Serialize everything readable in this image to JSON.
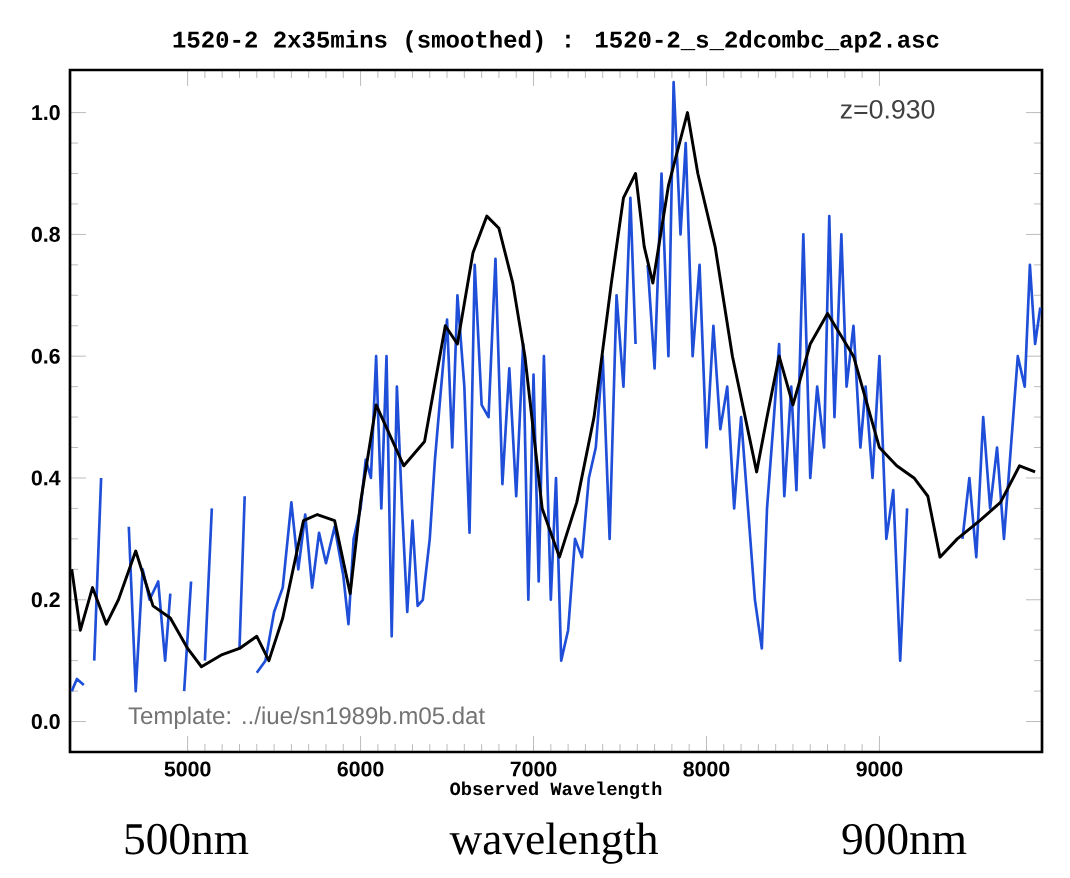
{
  "chart_data": {
    "type": "line",
    "title": "1520-2 2x35mins (smoothed) : 1520-2_s_2dcombc_ap2.asc",
    "xlabel": "Observed Wavelength",
    "annotations": [
      "z=0.930",
      "Template: ../iue/sn1989b.m05.dat",
      "500nm",
      "wavelength",
      "900nm"
    ],
    "xlim": [
      4320,
      9940
    ],
    "ylim": [
      -0.05,
      1.07
    ],
    "xticks": [
      5000,
      6000,
      7000,
      8000,
      9000
    ],
    "yticks": [
      {
        "value": 0,
        "label": "0.0"
      },
      {
        "value": 0.2,
        "label": "0.2"
      },
      {
        "value": 0.4,
        "label": "0.4"
      },
      {
        "value": 0.6,
        "label": "0.6"
      },
      {
        "value": 0.8,
        "label": "0.8"
      },
      {
        "value": 1.0,
        "label": "1.0"
      }
    ],
    "line_style": "solid",
    "marker": "none",
    "series": [
      {
        "color": "#1f4fd8",
        "x": [
          4330,
          4360,
          4400,
          4430,
          4460,
          4500,
          4530,
          4580,
          4620,
          4660,
          4700,
          4740,
          4780,
          4830,
          4870,
          4900,
          4940,
          4980,
          5020,
          5050,
          5100,
          5140,
          5170,
          5220,
          5260,
          5300,
          5330,
          5370,
          5400,
          5450,
          5500,
          5550,
          5600,
          5640,
          5680,
          5720,
          5760,
          5800,
          5850,
          5900,
          5930,
          5960,
          6000,
          6030,
          6060,
          6090,
          6120,
          6150,
          6180,
          6210,
          6240,
          6270,
          6300,
          6330,
          6360,
          6400,
          6430,
          6460,
          6500,
          6530,
          6560,
          6600,
          6630,
          6660,
          6700,
          6740,
          6780,
          6820,
          6860,
          6900,
          6940,
          6970,
          7000,
          7030,
          7060,
          7100,
          7130,
          7160,
          7200,
          7240,
          7280,
          7320,
          7360,
          7400,
          7440,
          7480,
          7520,
          7560,
          7590,
          7620,
          7660,
          7700,
          7740,
          7780,
          7810,
          7850,
          7880,
          7920,
          7960,
          8000,
          8040,
          8080,
          8120,
          8160,
          8200,
          8240,
          8280,
          8320,
          8350,
          8390,
          8420,
          8450,
          8490,
          8520,
          8560,
          8600,
          8640,
          8680,
          8710,
          8740,
          8780,
          8810,
          8850,
          8890,
          8920,
          8960,
          9000,
          9040,
          9080,
          9120,
          9160,
          9200,
          9240,
          9260,
          9300,
          9330,
          9360,
          9390,
          9420,
          9450,
          9480,
          9520,
          9560,
          9600,
          9640,
          9680,
          9720,
          9760,
          9800,
          9840,
          9870,
          9900,
          9930
        ],
        "values": [
          0.05,
          0.07,
          0.06,
          null,
          0.1,
          0.4,
          null,
          null,
          null,
          0.32,
          0.05,
          0.25,
          0.2,
          0.23,
          0.1,
          0.21,
          null,
          0.05,
          0.23,
          null,
          0.1,
          0.35,
          null,
          null,
          null,
          0.12,
          0.37,
          null,
          0.08,
          0.1,
          0.18,
          0.22,
          0.36,
          0.25,
          0.34,
          0.22,
          0.31,
          0.26,
          0.32,
          0.24,
          0.16,
          0.3,
          0.35,
          0.43,
          0.4,
          0.6,
          0.35,
          0.6,
          0.14,
          0.55,
          0.35,
          0.18,
          0.33,
          0.19,
          0.2,
          0.3,
          0.43,
          0.53,
          0.66,
          0.45,
          0.7,
          0.55,
          0.31,
          0.75,
          0.52,
          0.5,
          0.76,
          0.39,
          0.58,
          0.37,
          0.62,
          0.2,
          0.57,
          0.23,
          0.6,
          0.2,
          0.4,
          0.1,
          0.15,
          0.3,
          0.27,
          0.4,
          0.45,
          0.6,
          0.3,
          0.7,
          0.55,
          0.86,
          0.62,
          null,
          0.75,
          0.58,
          0.9,
          0.6,
          1.05,
          0.8,
          0.95,
          0.6,
          0.75,
          0.45,
          0.65,
          0.48,
          0.55,
          0.35,
          0.5,
          0.35,
          0.2,
          0.12,
          0.35,
          0.5,
          0.62,
          0.37,
          0.55,
          0.38,
          0.8,
          0.4,
          0.55,
          0.45,
          0.83,
          0.5,
          0.8,
          0.55,
          0.65,
          0.45,
          0.55,
          0.4,
          0.6,
          0.3,
          0.38,
          0.1,
          0.35,
          null,
          null,
          null,
          null,
          null,
          null,
          null,
          null,
          null,
          0.3,
          0.4,
          0.27,
          0.5,
          0.35,
          0.45,
          0.3,
          0.45,
          0.6,
          0.55,
          0.75,
          0.62,
          0.68
        ]
      },
      {
        "color": "#000000",
        "x": [
          4330,
          4380,
          4450,
          4530,
          4600,
          4700,
          4800,
          4900,
          5000,
          5080,
          5200,
          5300,
          5400,
          5470,
          5550,
          5670,
          5750,
          5850,
          5940,
          6000,
          6090,
          6170,
          6250,
          6370,
          6490,
          6560,
          6650,
          6730,
          6800,
          6880,
          6950,
          7050,
          7150,
          7250,
          7350,
          7450,
          7520,
          7590,
          7640,
          7690,
          7780,
          7890,
          7950,
          8050,
          8150,
          8290,
          8350,
          8420,
          8500,
          8600,
          8700,
          8850,
          9000,
          9100,
          9200,
          9280,
          9350,
          9450,
          9580,
          9700,
          9810,
          9900
        ],
        "values": [
          0.25,
          0.15,
          0.22,
          0.16,
          0.2,
          0.28,
          0.19,
          0.17,
          0.12,
          0.09,
          0.11,
          0.12,
          0.14,
          0.1,
          0.17,
          0.33,
          0.34,
          0.33,
          0.21,
          0.36,
          0.52,
          0.47,
          0.42,
          0.46,
          0.65,
          0.62,
          0.77,
          0.83,
          0.81,
          0.72,
          0.6,
          0.35,
          0.27,
          0.36,
          0.5,
          0.72,
          0.86,
          0.9,
          0.78,
          0.72,
          0.88,
          1.0,
          0.9,
          0.78,
          0.6,
          0.41,
          0.5,
          0.6,
          0.52,
          0.62,
          0.67,
          0.6,
          0.45,
          0.42,
          0.4,
          0.37,
          0.27,
          0.3,
          0.33,
          0.36,
          0.42,
          0.41
        ]
      }
    ]
  }
}
